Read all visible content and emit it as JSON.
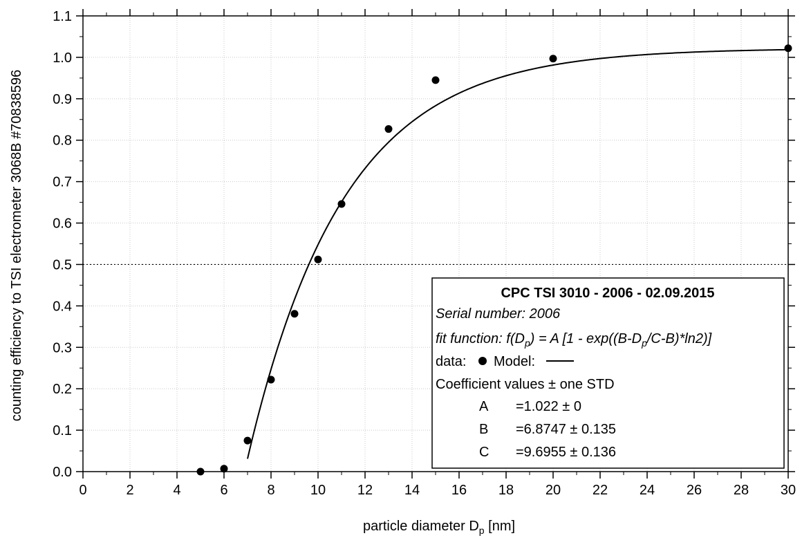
{
  "chart_data": {
    "type": "scatter",
    "xlabel": "particle diameter D",
    "xlabel_sub": "p",
    "xlabel_unit": " [nm]",
    "ylabel": "counting efficiency to TSI electrometer 3068B #70838596",
    "xlim": [
      0,
      30
    ],
    "ylim": [
      0.0,
      1.1
    ],
    "x_ticks": [
      0,
      2,
      4,
      6,
      8,
      10,
      12,
      14,
      16,
      18,
      20,
      22,
      24,
      26,
      28,
      30
    ],
    "y_ticks": [
      "0.0",
      "0.1",
      "0.2",
      "0.3",
      "0.4",
      "0.5",
      "0.6",
      "0.7",
      "0.8",
      "0.9",
      "1.0",
      "1.1"
    ],
    "grid": true,
    "reference_line": {
      "y": 0.5,
      "style": "dotted"
    },
    "series": [
      {
        "name": "data",
        "type": "scatter",
        "x": [
          5,
          6,
          7,
          8,
          9,
          10,
          11,
          13,
          15,
          20,
          30
        ],
        "y": [
          0.0,
          0.007,
          0.075,
          0.222,
          0.381,
          0.512,
          0.646,
          0.827,
          0.945,
          0.997,
          1.022
        ]
      },
      {
        "name": "Model",
        "type": "line",
        "function": "A*(1-exp((B-x)/(C-B)*ln2))",
        "x_range": [
          7.0,
          30
        ],
        "coefficients": {
          "A": 1.022,
          "B": 6.8747,
          "C": 9.6955
        }
      }
    ],
    "legend": {
      "position": "bottom-right",
      "title": "CPC TSI 3010 - 2006 - 02.09.2015",
      "serial": "Serial number: 2006",
      "fit_a": "fit function: f(D",
      "fit_sub": "p",
      "fit_b": ") = A [1 - exp((B-D",
      "fit_c": "/C-B)*ln2)]",
      "data_label": "data:",
      "model_label": "Model:",
      "coef_header": "Coefficient values ± one STD",
      "coefficients": [
        {
          "name": "A",
          "value": "=1.022 ± 0"
        },
        {
          "name": "B",
          "value": "=6.8747 ± 0.135"
        },
        {
          "name": "C",
          "value": "=9.6955 ± 0.136"
        }
      ]
    }
  }
}
